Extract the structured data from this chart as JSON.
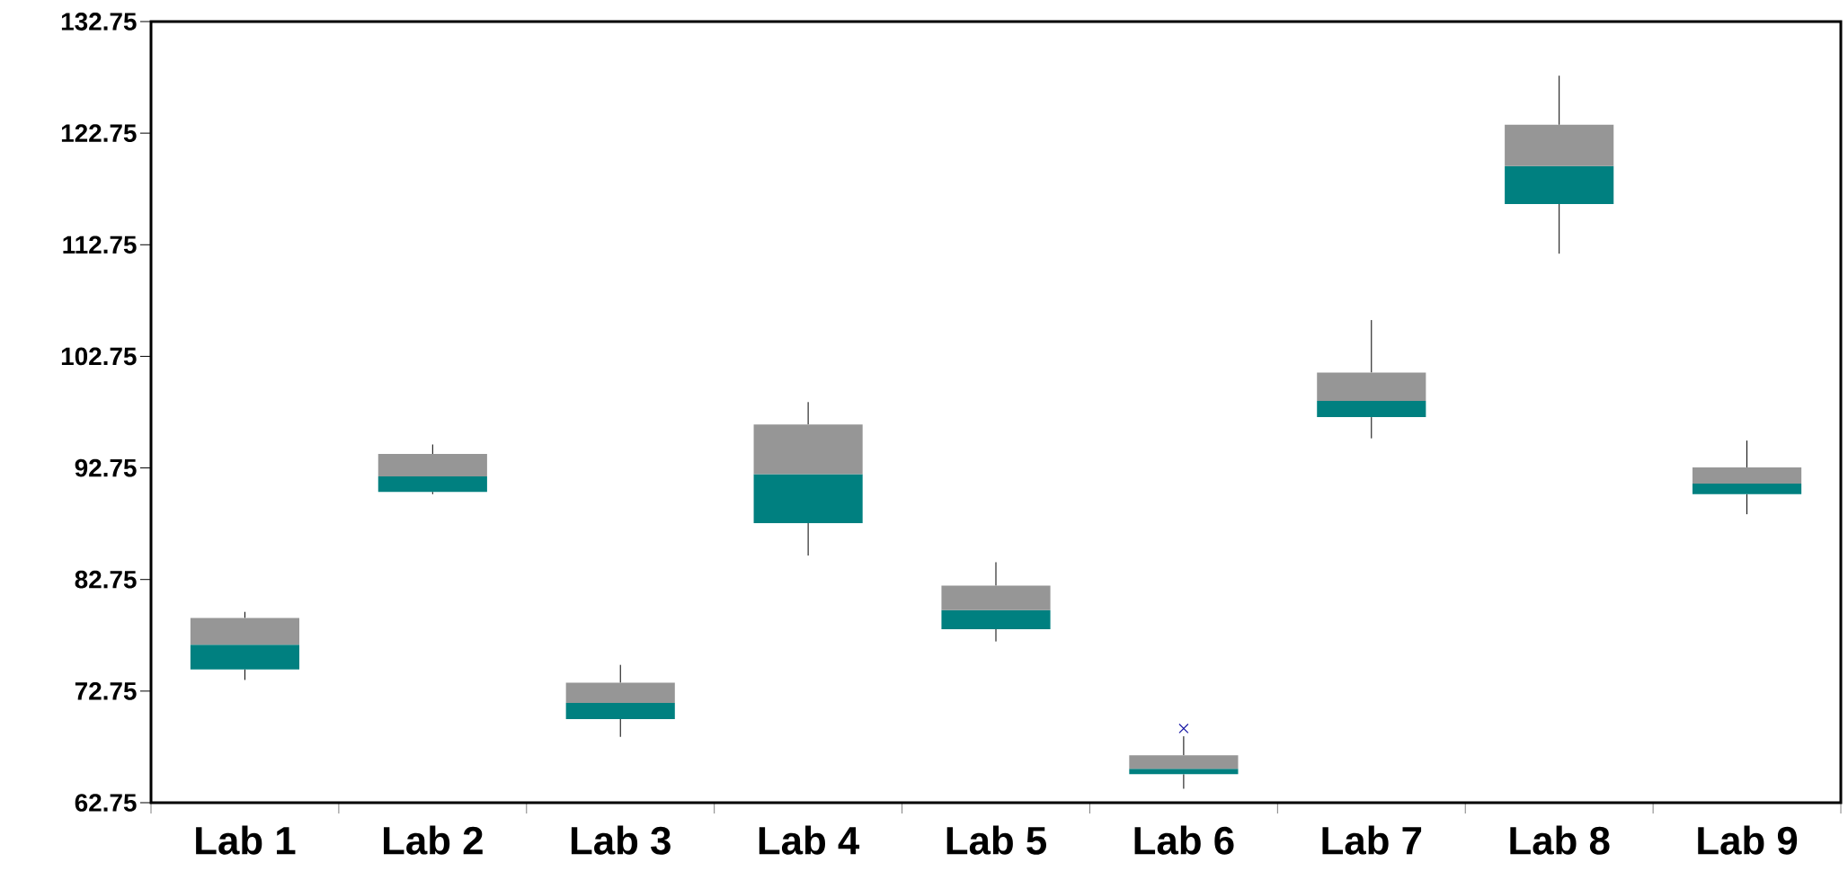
{
  "chart_data": {
    "type": "box",
    "categories": [
      "Lab 1",
      "Lab 2",
      "Lab 3",
      "Lab 4",
      "Lab 5",
      "Lab 6",
      "Lab 7",
      "Lab 8",
      "Lab 9"
    ],
    "series": [
      {
        "color": "#008080",
        "boxes": [
          {
            "low": 73.75,
            "q1": 74.7,
            "median": 76.9,
            "q3": 79.3,
            "high": 79.85
          },
          {
            "low": 90.4,
            "q1": 90.6,
            "median": 92.0,
            "q3": 94.0,
            "high": 94.85
          },
          {
            "low": 68.65,
            "q1": 70.25,
            "median": 71.7,
            "q3": 73.5,
            "high": 75.1
          },
          {
            "low": 84.9,
            "q1": 87.8,
            "median": 92.2,
            "q3": 96.65,
            "high": 98.65
          },
          {
            "low": 77.2,
            "q1": 78.3,
            "median": 80.0,
            "q3": 82.2,
            "high": 84.3
          },
          {
            "low": 64.0,
            "q1": 65.3,
            "median": 65.8,
            "q3": 67.0,
            "high": 68.7,
            "outliers": [
              69.4
            ]
          },
          {
            "low": 95.4,
            "q1": 97.3,
            "median": 98.75,
            "q3": 101.3,
            "high": 106.0
          },
          {
            "low": 111.95,
            "q1": 116.4,
            "median": 119.8,
            "q3": 123.5,
            "high": 127.9
          },
          {
            "low": 88.6,
            "q1": 90.4,
            "median": 91.35,
            "q3": 92.8,
            "high": 95.2
          }
        ]
      }
    ],
    "ylim": [
      62.75,
      132.75
    ],
    "yticks": [
      62.75,
      72.75,
      82.75,
      92.75,
      102.75,
      112.75,
      122.75,
      132.75
    ]
  }
}
